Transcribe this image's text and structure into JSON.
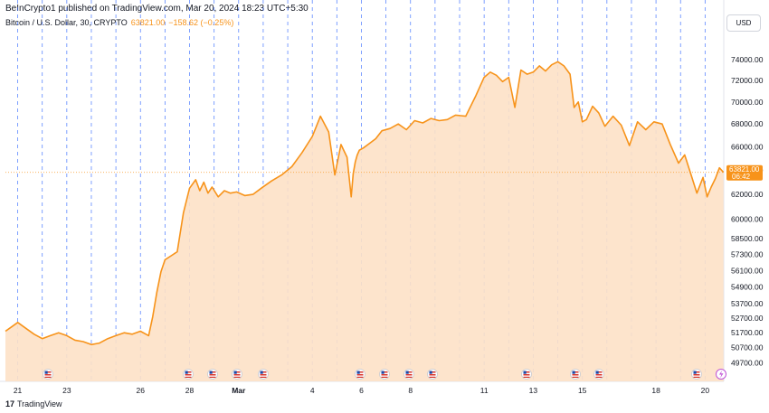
{
  "header": {
    "publisher": "BeInCrypto1 published on TradingView.com, Mar 20, 2024 18:23 UTC+5:30"
  },
  "legend": {
    "symbol": "Bitcoin / U.S. Dollar, 30, CRYPTO",
    "price": "63821.00",
    "change": "−158.62 (−0.25%)"
  },
  "currency_button": "USD",
  "price_tag": {
    "value": "63821.00",
    "countdown": "06:42"
  },
  "footer": {
    "brand": "TradingView",
    "logo": "17"
  },
  "colors": {
    "line": "#f7931a",
    "fill": "#fde1c7",
    "price_tag": "#f7931a",
    "session_line": "#2962ff",
    "event_us": "#d8352b"
  },
  "chart_data": {
    "type": "area",
    "title": "",
    "xlabel": "",
    "ylabel": "",
    "ylim": [
      48500,
      76500
    ],
    "y_scale": "log",
    "y_ticks": [
      49700,
      50700,
      51700,
      52700,
      53700,
      54900,
      56100,
      57300,
      58500,
      60000,
      62000,
      64000,
      66000,
      68000,
      70000,
      72000,
      74000
    ],
    "x_ticks": [
      "21",
      "23",
      "26",
      "28",
      "Mar",
      "4",
      "6",
      "8",
      "11",
      "13",
      "15",
      "18",
      "20"
    ],
    "x_tick_dates": [
      "Feb 21",
      "Feb 23",
      "Feb 26",
      "Feb 28",
      "Mar 1",
      "Mar 4",
      "Mar 6",
      "Mar 8",
      "Mar 11",
      "Mar 13",
      "Mar 15",
      "Mar 18",
      "Mar 20"
    ],
    "last_price": 63821.0,
    "series": [
      {
        "x": [
          "Feb 20 12:00",
          "Feb 20 18:00",
          "Feb 21 00:00",
          "Feb 21 08:00",
          "Feb 21 16:00",
          "Feb 22 00:00",
          "Feb 22 08:00",
          "Feb 22 16:00",
          "Feb 23 00:00",
          "Feb 23 08:00",
          "Feb 23 16:00",
          "Feb 24 00:00",
          "Feb 24 08:00",
          "Feb 24 16:00",
          "Feb 25 00:00",
          "Feb 25 08:00",
          "Feb 25 16:00",
          "Feb 26 00:00",
          "Feb 26 08:00",
          "Feb 26 12:00",
          "Feb 26 16:00",
          "Feb 26 20:00",
          "Feb 27 00:00",
          "Feb 27 06:00",
          "Feb 27 12:00",
          "Feb 27 18:00",
          "Feb 28 00:00",
          "Feb 28 06:00",
          "Feb 28 10:00",
          "Feb 28 14:00",
          "Feb 28 18:00",
          "Feb 28 22:00",
          "Feb 29 04:00",
          "Feb 29 10:00",
          "Feb 29 16:00",
          "Feb 29 22:00",
          "Mar 1 06:00",
          "Mar 1 14:00",
          "Mar 1 22:00",
          "Mar 2 08:00",
          "Mar 2 18:00",
          "Mar 3 04:00",
          "Mar 3 14:00",
          "Mar 4 00:00",
          "Mar 4 08:00",
          "Mar 4 16:00",
          "Mar 4 22:00",
          "Mar 5 04:00",
          "Mar 5 10:00",
          "Mar 5 14:00",
          "Mar 5 16:00",
          "Mar 5 18:00",
          "Mar 5 20:00",
          "Mar 5 22:00",
          "Mar 6 02:00",
          "Mar 6 08:00",
          "Mar 6 14:00",
          "Mar 6 20:00",
          "Mar 7 04:00",
          "Mar 7 12:00",
          "Mar 7 20:00",
          "Mar 8 04:00",
          "Mar 8 12:00",
          "Mar 8 20:00",
          "Mar 9 04:00",
          "Mar 9 12:00",
          "Mar 9 20:00",
          "Mar 10 06:00",
          "Mar 10 16:00",
          "Mar 11 00:00",
          "Mar 11 06:00",
          "Mar 11 12:00",
          "Mar 11 18:00",
          "Mar 12 00:00",
          "Mar 12 06:00",
          "Mar 12 12:00",
          "Mar 12 18:00",
          "Mar 13 00:00",
          "Mar 13 06:00",
          "Mar 13 12:00",
          "Mar 13 18:00",
          "Mar 14 00:00",
          "Mar 14 06:00",
          "Mar 14 12:00",
          "Mar 14 16:00",
          "Mar 14 20:00",
          "Mar 15 00:00",
          "Mar 15 04:00",
          "Mar 15 10:00",
          "Mar 15 16:00",
          "Mar 15 22:00",
          "Mar 16 06:00",
          "Mar 16 14:00",
          "Mar 16 22:00",
          "Mar 17 06:00",
          "Mar 17 14:00",
          "Mar 17 22:00",
          "Mar 18 06:00",
          "Mar 18 14:00",
          "Mar 18 22:00",
          "Mar 19 04:00",
          "Mar 19 10:00",
          "Mar 19 16:00",
          "Mar 19 22:00",
          "Mar 20 02:00",
          "Mar 20 06:00",
          "Mar 20 10:00",
          "Mar 20 14:00",
          "Mar 20 18:00"
        ],
        "y": [
          51800,
          52100,
          52400,
          52000,
          51600,
          51300,
          51500,
          51700,
          51500,
          51200,
          51100,
          50900,
          51000,
          51300,
          51500,
          51700,
          51600,
          51800,
          51500,
          52800,
          54500,
          56000,
          56900,
          57200,
          57500,
          60500,
          62500,
          63200,
          62300,
          63000,
          62100,
          62600,
          61800,
          62300,
          62100,
          62200,
          61900,
          62000,
          62500,
          63100,
          63600,
          64300,
          65500,
          66900,
          68700,
          67300,
          63600,
          66200,
          65100,
          61800,
          63700,
          64700,
          65300,
          65700,
          65900,
          66300,
          66700,
          67400,
          67600,
          68000,
          67500,
          68300,
          68100,
          68500,
          68300,
          68400,
          68800,
          68700,
          70600,
          72300,
          72800,
          72500,
          71900,
          72300,
          69500,
          73000,
          72600,
          72800,
          73400,
          72900,
          73500,
          73800,
          73400,
          72600,
          69500,
          70000,
          68200,
          68400,
          69600,
          69000,
          67800,
          68700,
          67900,
          66100,
          68200,
          67500,
          68200,
          68000,
          66200,
          64600,
          65300,
          63700,
          62100,
          63400,
          61800,
          62600,
          63300,
          64200,
          63821
        ],
        "name": ""
      }
    ]
  }
}
